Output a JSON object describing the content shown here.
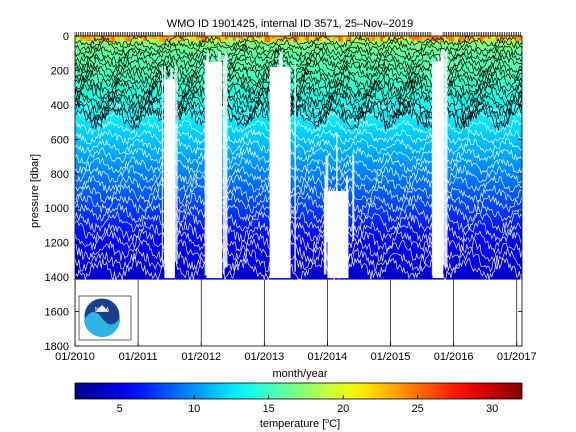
{
  "chart_data": {
    "type": "heatmap",
    "title": "WMO ID 1901425, internal ID 3571, 25–Nov–2019",
    "xlabel": "month/year",
    "ylabel": "pressure [dbar]",
    "xlim": [
      "2010-01",
      "2017-02"
    ],
    "ylim": [
      1800,
      0
    ],
    "x_ticks": [
      "01/2010",
      "01/2011",
      "01/2012",
      "01/2013",
      "01/2014",
      "01/2015",
      "01/2016",
      "01/2017"
    ],
    "y_ticks": [
      0,
      200,
      400,
      600,
      800,
      1000,
      1200,
      1400,
      1600,
      1800
    ],
    "data_max_pressure": 1415,
    "colorbar": {
      "label_pre": "temperature [",
      "label_unit": "C]",
      "label_degree": "o",
      "range": [
        2,
        32
      ],
      "ticks": [
        5,
        10,
        15,
        20,
        25,
        30
      ],
      "colormap": "jet"
    },
    "temperature_profile": {
      "pressure": [
        0,
        20,
        50,
        100,
        200,
        300,
        400,
        500,
        600,
        700,
        800,
        900,
        1000,
        1100,
        1200,
        1300,
        1400
      ],
      "temperature": [
        20,
        18,
        17,
        16,
        15.5,
        14.5,
        13.5,
        12.5,
        11.5,
        10.5,
        9.5,
        8.5,
        7.5,
        6.5,
        5.5,
        4.8,
        4.2
      ]
    },
    "data_gaps": [
      {
        "start": "2011-06",
        "end": "2011-07",
        "from_pressure": 250,
        "to_pressure": 1400
      },
      {
        "start": "2012-02",
        "end": "2012-04",
        "from_pressure": 150,
        "to_pressure": 1400
      },
      {
        "start": "2013-02",
        "end": "2013-05",
        "from_pressure": 180,
        "to_pressure": 1400
      },
      {
        "start": "2014-01",
        "end": "2014-04",
        "from_pressure": 900,
        "to_pressure": 1400
      },
      {
        "start": "2015-09",
        "end": "2015-10",
        "from_pressure": 150,
        "to_pressure": 1400
      }
    ],
    "profile_months": [
      "2010-01",
      "2010-02",
      "2010-03",
      "2010-04",
      "2010-05",
      "2010-06",
      "2010-07",
      "2010-08",
      "2010-09",
      "2010-10",
      "2010-11",
      "2010-12",
      "2011-01",
      "2011-02",
      "2011-03",
      "2011-04",
      "2011-05",
      "2011-08",
      "2011-09",
      "2011-10",
      "2011-11",
      "2011-12",
      "2012-01",
      "2012-05",
      "2012-06",
      "2012-07",
      "2012-08",
      "2012-09",
      "2012-10",
      "2012-11",
      "2012-12",
      "2013-01",
      "2013-06",
      "2013-07",
      "2013-08",
      "2013-09",
      "2013-10",
      "2013-11",
      "2013-12",
      "2014-05",
      "2014-06",
      "2014-07",
      "2014-08",
      "2014-09",
      "2014-10",
      "2014-11",
      "2014-12",
      "2015-01",
      "2015-02",
      "2015-03",
      "2015-04",
      "2015-05",
      "2015-06",
      "2015-07",
      "2015-08",
      "2015-11",
      "2015-12",
      "2016-01",
      "2016-02",
      "2016-03",
      "2016-04",
      "2016-05",
      "2016-06",
      "2016-07",
      "2016-08",
      "2016-09",
      "2016-10",
      "2016-11",
      "2016-12",
      "2017-01"
    ]
  },
  "logo": {
    "icon": "noaa-logo-icon",
    "text": "NOAA"
  },
  "colors": {
    "ocean_blue": "#1a62b0",
    "logo_dark": "#1b3f8c",
    "logo_light": "#2fb4e6",
    "white_contour": "#ffffff",
    "black_contour": "#000000"
  }
}
